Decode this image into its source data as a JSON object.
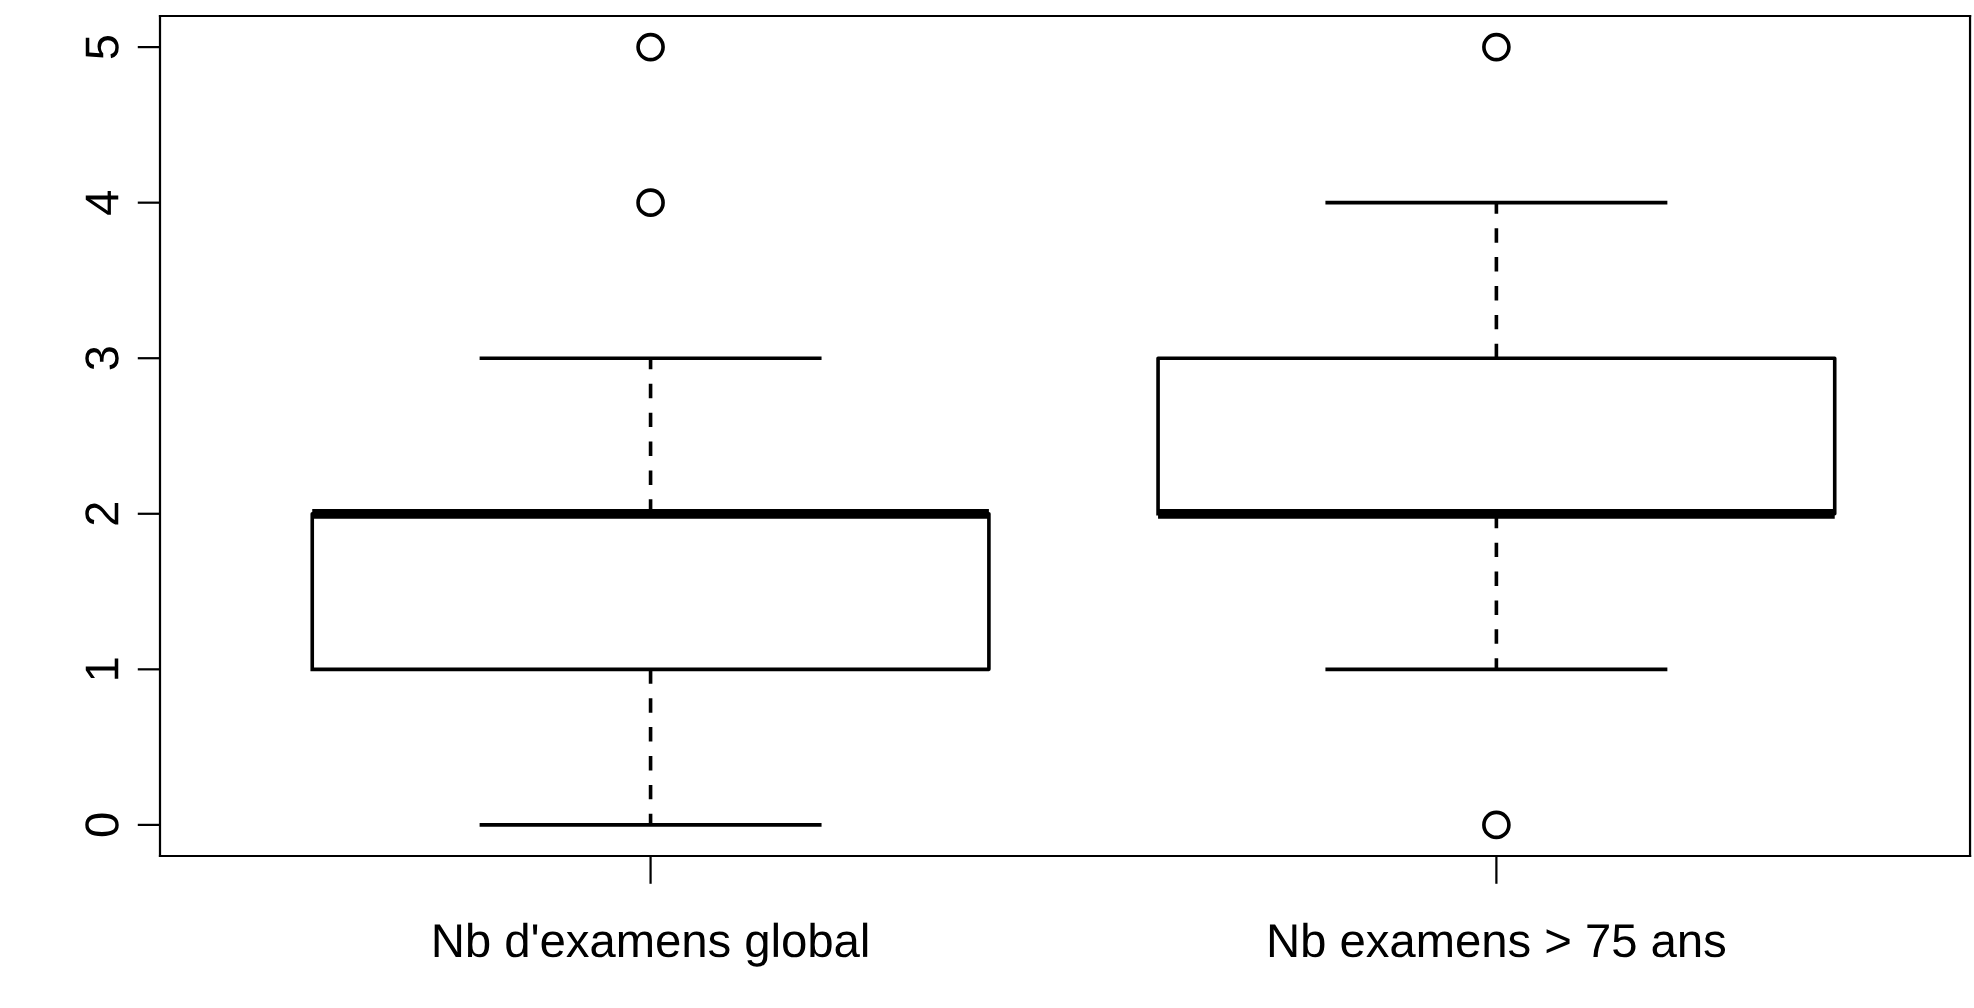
{
  "chart_data": {
    "type": "box",
    "categories": [
      "Nb d'examens global",
      "Nb examens > 75 ans"
    ],
    "boxes": [
      {
        "low": 0,
        "q1": 1,
        "median": 2,
        "q3": 2,
        "high": 3,
        "outliers": [
          4,
          5
        ]
      },
      {
        "low": 1,
        "q1": 2,
        "median": 2,
        "q3": 3,
        "high": 4,
        "outliers": [
          0,
          5
        ]
      }
    ],
    "ylim": [
      -0.2,
      5.2
    ],
    "yticks": [
      0,
      1,
      2,
      3,
      4,
      5
    ],
    "color": "#000000"
  }
}
